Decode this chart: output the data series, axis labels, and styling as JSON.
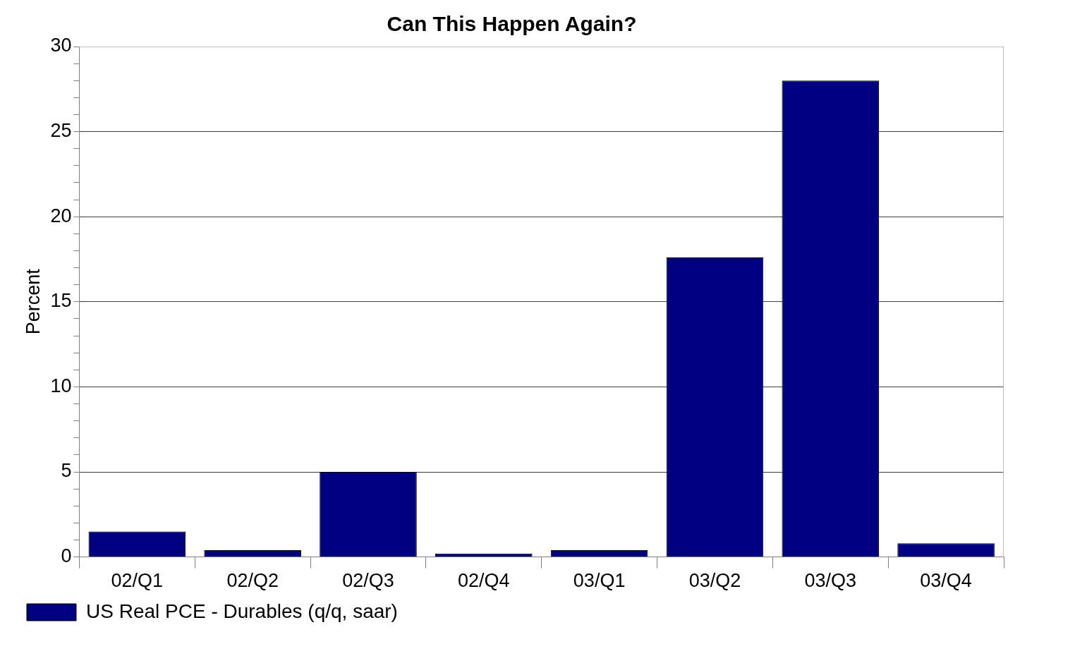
{
  "chart_data": {
    "type": "bar",
    "title": "Can This Happen Again?",
    "ylabel": "Percent",
    "categories": [
      "02/Q1",
      "02/Q2",
      "02/Q3",
      "02/Q4",
      "03/Q1",
      "03/Q2",
      "03/Q3",
      "03/Q4"
    ],
    "series": [
      {
        "name": "US Real PCE - Durables (q/q, saar)",
        "color": "#000080",
        "values": [
          1.5,
          0.4,
          5.0,
          0.2,
          0.4,
          17.6,
          28.0,
          0.8
        ]
      }
    ],
    "ylim": [
      0,
      30
    ],
    "yticks": [
      0,
      {
        "value": 1,
        "label": null
      },
      {
        "value": 2,
        "label": null
      },
      {
        "value": 3,
        "label": null
      },
      {
        "value": 4,
        "label": null
      },
      5,
      {
        "value": 6,
        "label": null
      },
      {
        "value": 7,
        "label": null
      },
      {
        "value": 8,
        "label": null
      },
      {
        "value": 9,
        "label": null
      },
      10,
      {
        "value": 11,
        "label": null
      },
      {
        "value": 12,
        "label": null
      },
      {
        "value": 13,
        "label": null
      },
      {
        "value": 14,
        "label": null
      },
      15,
      {
        "value": 16,
        "label": null
      },
      {
        "value": 17,
        "label": null
      },
      {
        "value": 18,
        "label": null
      },
      {
        "value": 19,
        "label": null
      },
      20,
      {
        "value": 21,
        "label": null
      },
      {
        "value": 22,
        "label": null
      },
      {
        "value": 23,
        "label": null
      },
      {
        "value": 24,
        "label": null
      },
      25,
      {
        "value": 26,
        "label": null
      },
      {
        "value": 27,
        "label": null
      },
      {
        "value": 28,
        "label": null
      },
      {
        "value": 29,
        "label": null
      },
      30
    ],
    "grid": "y",
    "legend": "bottom left"
  }
}
